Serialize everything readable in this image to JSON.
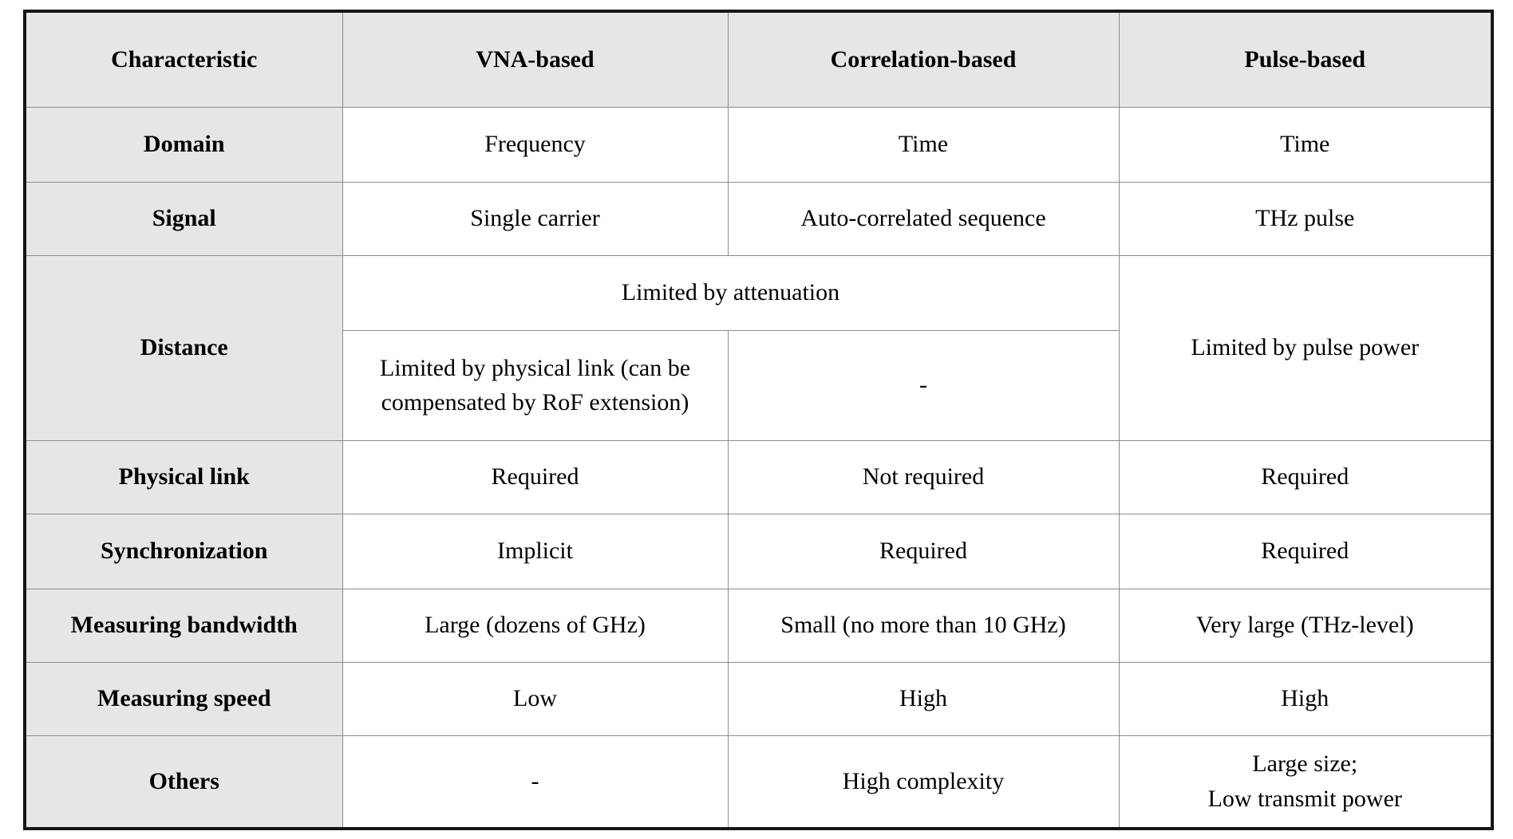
{
  "table": {
    "columns": [
      "Characteristic",
      "VNA-based",
      "Correlation-based",
      "Pulse-based"
    ],
    "rows": {
      "domain": {
        "label": "Domain",
        "vna": "Frequency",
        "corr": "Time",
        "pulse": "Time"
      },
      "signal": {
        "label": "Signal",
        "vna": "Single carrier",
        "corr": "Auto-correlated sequence",
        "pulse": "THz pulse"
      },
      "distance": {
        "label": "Distance",
        "shared_vna_corr": "Limited by attenuation",
        "vna": "Limited by physical link (can be compensated by RoF extension)",
        "corr": "-",
        "pulse": "Limited by pulse power"
      },
      "physical_link": {
        "label": "Physical link",
        "vna": "Required",
        "corr": "Not required",
        "pulse": "Required"
      },
      "synchronization": {
        "label": "Synchronization",
        "vna": "Implicit",
        "corr": "Required",
        "pulse": "Required"
      },
      "measuring_bandwidth": {
        "label": "Measuring bandwidth",
        "vna": "Large (dozens of GHz)",
        "corr": "Small (no more than 10 GHz)",
        "pulse": "Very large (THz-level)"
      },
      "measuring_speed": {
        "label": "Measuring speed",
        "vna": "Low",
        "corr": "High",
        "pulse": "High"
      },
      "others": {
        "label": "Others",
        "vna": "-",
        "corr": "High complexity",
        "pulse_line1": "Large size;",
        "pulse_line2": "Low transmit power"
      }
    },
    "colors": {
      "header_bg": "#e6e6e6",
      "cell_bg": "#ffffff",
      "grid_line": "#8c8c8c",
      "outer_border": "#161616",
      "text": "#000000"
    }
  }
}
